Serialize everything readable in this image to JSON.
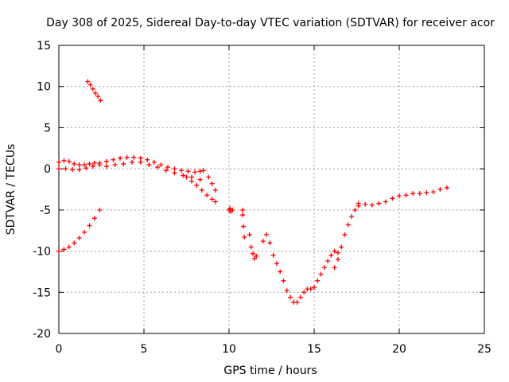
{
  "chart_data": {
    "type": "scatter",
    "title": "Day 308 of 2025, Sidereal Day-to-day VTEC variation (SDTVAR) for receiver acor",
    "xlabel": "GPS time / hours",
    "ylabel": "SDTVAR / TECUs",
    "xlim": [
      0,
      25
    ],
    "ylim": [
      -20,
      15
    ],
    "x_ticks": [
      0,
      5,
      10,
      15,
      20,
      25
    ],
    "y_ticks": [
      -20,
      -15,
      -10,
      -5,
      0,
      5,
      10,
      15
    ],
    "x_tick_labels": [
      "0",
      "5",
      "10",
      "15",
      "20",
      "25"
    ],
    "y_tick_labels": [
      "-20",
      "-15",
      "-10",
      "-5",
      "0",
      "5",
      "10",
      "15"
    ],
    "grid": true,
    "marker": "+",
    "color": "#ff0000",
    "series": [
      {
        "name": "upper short segment",
        "x": [
          1.7,
          1.85,
          2.0,
          2.15,
          2.3,
          2.45
        ],
        "y": [
          10.6,
          10.2,
          9.7,
          9.2,
          8.8,
          8.3
        ]
      },
      {
        "name": "main band",
        "x": [
          0.0,
          0.3,
          0.6,
          0.9,
          1.2,
          1.5,
          1.8,
          2.1,
          2.4,
          2.8,
          3.2,
          3.6,
          4.0,
          4.4,
          4.8,
          5.2,
          5.6,
          6.0,
          6.4,
          6.8,
          7.2,
          7.6,
          8.0,
          8.3,
          8.5
        ],
        "y": [
          0.8,
          1.0,
          0.9,
          0.6,
          0.5,
          0.5,
          0.6,
          0.7,
          0.7,
          0.9,
          1.1,
          1.3,
          1.4,
          1.4,
          1.3,
          1.1,
          0.8,
          0.5,
          0.2,
          0.0,
          -0.2,
          -0.3,
          -0.4,
          -0.3,
          -0.2
        ]
      },
      {
        "name": "main band lower edge",
        "x": [
          0.0,
          0.4,
          0.8,
          1.2,
          1.6,
          2.0,
          2.4,
          2.8,
          3.3,
          3.8,
          4.3,
          4.8,
          5.3,
          5.8,
          6.3,
          6.8,
          7.3,
          7.8,
          8.3
        ],
        "y": [
          0.0,
          0.0,
          -0.1,
          -0.1,
          0.1,
          0.3,
          0.5,
          0.3,
          0.5,
          0.6,
          0.8,
          0.8,
          0.5,
          0.2,
          -0.2,
          -0.5,
          -0.8,
          -1.0,
          -1.3
        ]
      },
      {
        "name": "evening descent",
        "x": [
          7.5,
          7.8,
          8.1,
          8.4,
          8.7,
          9.0,
          9.2,
          8.8,
          9.0,
          9.2
        ],
        "y": [
          -1.0,
          -1.5,
          -2.0,
          -2.6,
          -3.2,
          -3.7,
          -4.0,
          -1.0,
          -1.8,
          -2.6
        ]
      },
      {
        "name": "lower early segment",
        "x": [
          0.0,
          0.3,
          0.6,
          0.9,
          1.2,
          1.5,
          1.8,
          2.1,
          2.4
        ],
        "y": [
          -10.0,
          -9.8,
          -9.5,
          -9.0,
          -8.4,
          -7.7,
          -6.9,
          -6.0,
          -5.0
        ]
      },
      {
        "name": "scattered midday",
        "x": [
          10.0,
          10.05,
          10.1,
          10.2,
          10.8,
          10.8,
          10.85,
          10.9,
          11.2,
          11.3,
          11.4,
          11.5,
          11.6
        ],
        "y": [
          -5.0,
          -4.8,
          -5.2,
          -5.0,
          -5.0,
          -5.6,
          -7.0,
          -8.3,
          -8.0,
          -9.5,
          -10.3,
          -10.9,
          -10.6
        ]
      },
      {
        "name": "dip to minimum",
        "x": [
          12.0,
          12.2,
          12.4,
          12.6,
          12.8,
          13.0,
          13.2,
          13.4,
          13.6,
          13.8,
          14.0,
          14.2,
          14.4,
          14.6,
          14.8,
          15.0,
          15.2,
          15.4,
          15.6,
          15.8,
          16.0,
          16.2,
          16.4
        ],
        "y": [
          -8.8,
          -8.0,
          -9.0,
          -10.5,
          -11.5,
          -12.5,
          -13.6,
          -14.8,
          -15.6,
          -16.2,
          -16.2,
          -15.6,
          -15.0,
          -14.6,
          -14.6,
          -14.4,
          -13.6,
          -12.8,
          -12.0,
          -11.2,
          -10.5,
          -10.0,
          -10.2
        ]
      },
      {
        "name": "recovery",
        "x": [
          16.2,
          16.4,
          16.6,
          16.8,
          17.0,
          17.2,
          17.4,
          17.6
        ],
        "y": [
          -12.0,
          -11.0,
          -9.5,
          -8.0,
          -6.8,
          -5.8,
          -5.0,
          -4.5
        ]
      },
      {
        "name": "late afternoon",
        "x": [
          17.6,
          18.0,
          18.4,
          18.8,
          19.2,
          19.6,
          20.0,
          20.4,
          20.8,
          21.2,
          21.6,
          22.0,
          22.4,
          22.8
        ],
        "y": [
          -4.2,
          -4.3,
          -4.4,
          -4.2,
          -4.0,
          -3.6,
          -3.3,
          -3.2,
          -3.0,
          -3.0,
          -2.9,
          -2.8,
          -2.5,
          -2.3
        ]
      }
    ]
  }
}
